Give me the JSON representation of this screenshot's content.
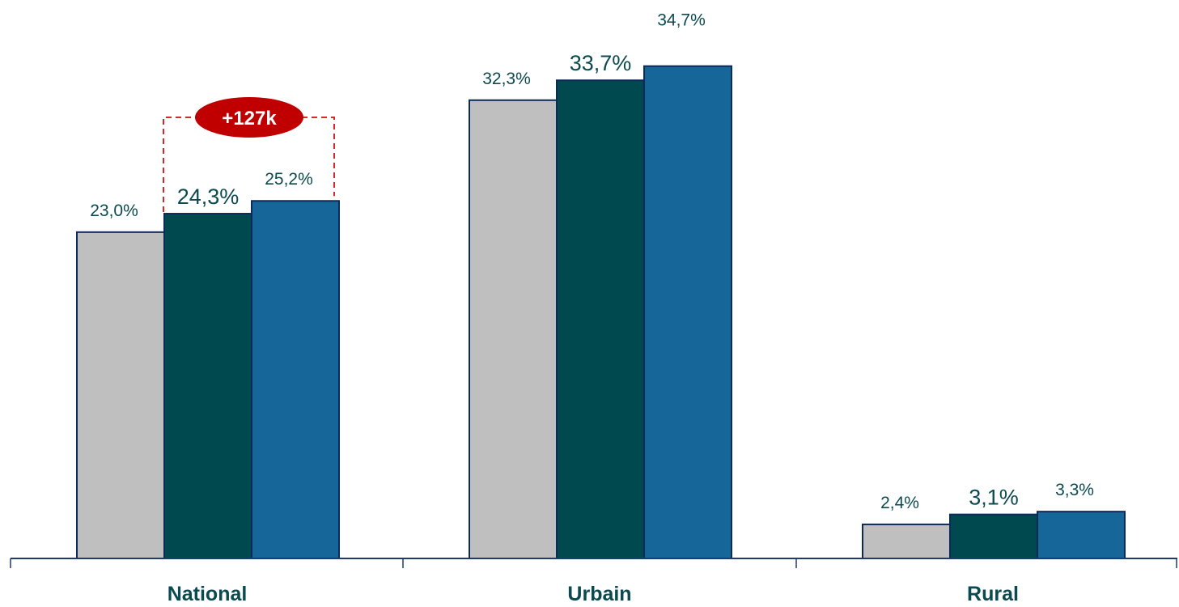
{
  "chart_data": {
    "type": "bar",
    "categories": [
      "National",
      "Urbain",
      "Rural"
    ],
    "series": [
      {
        "values": [
          23.0,
          32.3,
          2.4
        ],
        "labels": [
          "23,0%",
          "32,3%",
          "2,4%"
        ],
        "color": "#bfbfbf",
        "emphasis": false
      },
      {
        "values": [
          24.3,
          33.7,
          3.1
        ],
        "labels": [
          "24,3%",
          "33,7%",
          "3,1%"
        ],
        "color": "#004a4f",
        "emphasis": true
      },
      {
        "values": [
          25.2,
          34.7,
          3.3
        ],
        "labels": [
          "25,2%",
          "34,7%",
          "3,3%"
        ],
        "color": "#17669a",
        "emphasis": false
      }
    ],
    "ylim": [
      0,
      38
    ],
    "grid": false,
    "legend": "none",
    "colors": {
      "axis": "#1f3a6e",
      "bar_outline": "#0d2a5c",
      "label_text": "#0d4a50",
      "category_text": "#0a4a50",
      "badge_fill": "#c00000",
      "badge_line": "#d9262b"
    },
    "annotation": {
      "text": "+127k",
      "category": "National",
      "from_series": 1,
      "to_series": 2
    }
  }
}
